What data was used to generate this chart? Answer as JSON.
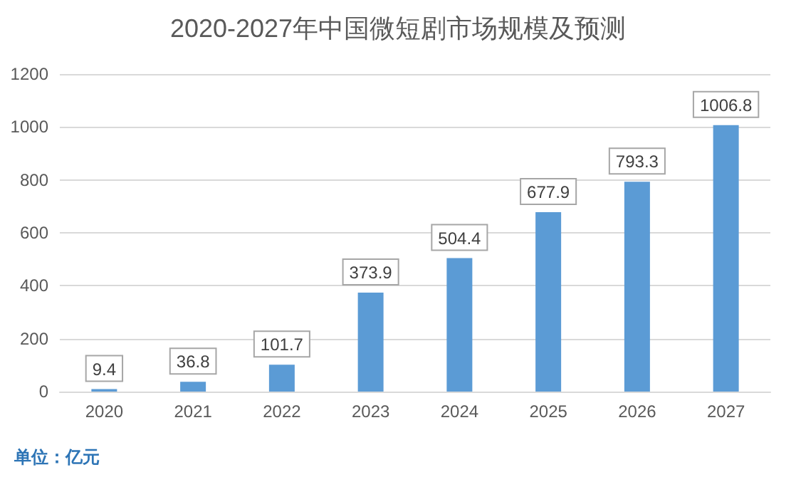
{
  "chart_data": {
    "type": "bar",
    "title": "2020-2027年中国微短剧市场规模及预测",
    "categories": [
      "2020",
      "2021",
      "2022",
      "2023",
      "2024",
      "2025",
      "2026",
      "2027"
    ],
    "values": [
      9.4,
      36.8,
      101.7,
      373.9,
      504.4,
      677.9,
      793.3,
      1006.8
    ],
    "color": "#5b9bd5",
    "ylim": [
      0,
      1200
    ],
    "yticks": [
      0,
      200,
      400,
      600,
      800,
      1000,
      1200
    ],
    "grid": "y",
    "data_labels": true,
    "annotations": [
      "单位：亿元"
    ]
  }
}
